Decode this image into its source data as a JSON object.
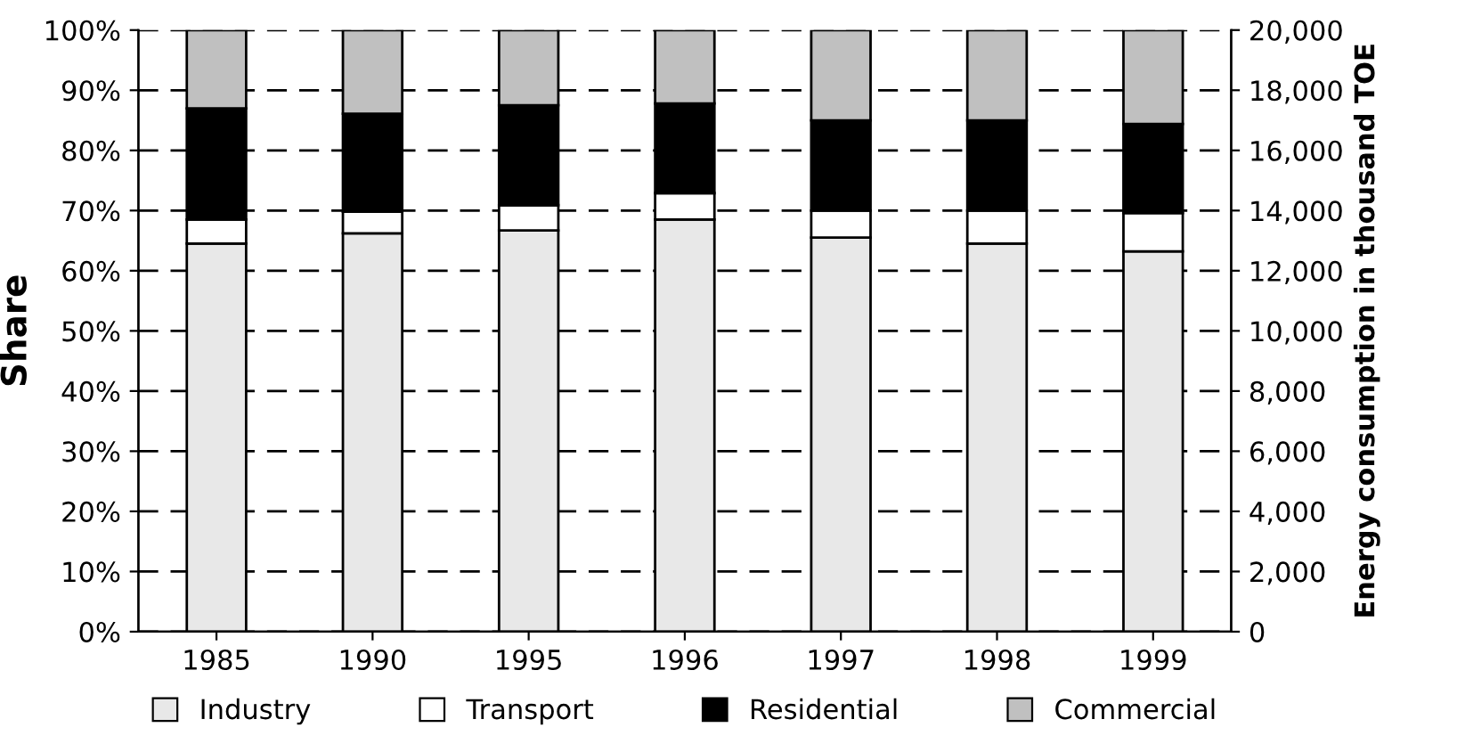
{
  "chart_data": {
    "type": "bar",
    "stacked": true,
    "ylabel": "Share",
    "y2label": "Energy consumption in thousand TOE",
    "categories": [
      "1985",
      "1990",
      "1995",
      "1996",
      "1997",
      "1998",
      "1999"
    ],
    "series": [
      {
        "name": "Industry",
        "color": "#e8e8e8",
        "values": [
          64.5,
          66.2,
          66.7,
          68.5,
          65.5,
          64.5,
          63.2
        ]
      },
      {
        "name": "Transport",
        "color": "#ffffff",
        "values": [
          4.0,
          3.6,
          4.2,
          4.4,
          4.5,
          5.5,
          6.4
        ]
      },
      {
        "name": "Residential",
        "color": "#000000",
        "values": [
          18.5,
          16.3,
          16.6,
          14.9,
          15.0,
          15.0,
          14.8
        ]
      },
      {
        "name": "Commercial",
        "color": "#c0c0c0",
        "values": [
          13.0,
          13.9,
          12.5,
          12.2,
          15.0,
          15.0,
          15.6
        ]
      }
    ],
    "ylim": [
      0,
      100
    ],
    "yticks": [
      {
        "value": 0,
        "label": "0%"
      },
      {
        "value": 10,
        "label": "10%"
      },
      {
        "value": 20,
        "label": "20%"
      },
      {
        "value": 30,
        "label": "30%"
      },
      {
        "value": 40,
        "label": "40%"
      },
      {
        "value": 50,
        "label": "50%"
      },
      {
        "value": 60,
        "label": "60%"
      },
      {
        "value": 70,
        "label": "70%"
      },
      {
        "value": 80,
        "label": "80%"
      },
      {
        "value": 90,
        "label": "90%"
      },
      {
        "value": 100,
        "label": "100%"
      }
    ],
    "y2lim": [
      0,
      20000
    ],
    "y2ticks": [
      0,
      {
        "value": 2000,
        "label": "2,000"
      },
      {
        "value": 4000,
        "label": "4,000"
      },
      {
        "value": 6000,
        "label": "6,000"
      },
      {
        "value": 8000,
        "label": "8,000"
      },
      {
        "value": 10000,
        "label": "10,000"
      },
      {
        "value": 12000,
        "label": "12,000"
      },
      {
        "value": 14000,
        "label": "14,000"
      },
      {
        "value": 16000,
        "label": "16,000"
      },
      {
        "value": 18000,
        "label": "18,000"
      },
      {
        "value": 20000,
        "label": "20,000"
      }
    ],
    "grid": "y",
    "legend": "bottom"
  }
}
